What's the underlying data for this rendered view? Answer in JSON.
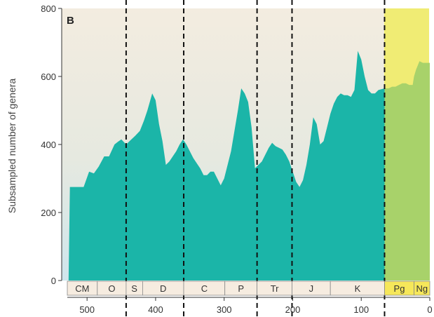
{
  "chart_data": {
    "type": "area",
    "panel_label": "B",
    "title": "",
    "xlabel": "",
    "ylabel": "Subsampled number of genera",
    "x_reversed": true,
    "xlim": [
      537,
      0
    ],
    "ylim": [
      0,
      800
    ],
    "xticks": [
      "500",
      "400",
      "300",
      "200",
      "100",
      "0"
    ],
    "xtick_values": [
      500,
      400,
      300,
      200,
      100,
      0
    ],
    "yticks": [
      "0",
      "200",
      "400",
      "600",
      "800"
    ],
    "ytick_values": [
      0,
      200,
      400,
      600,
      800
    ],
    "grid": false,
    "series": [
      {
        "x": [
          527,
          525,
          520,
          510,
          505,
          497,
          490,
          483,
          475,
          468,
          460,
          455,
          450,
          443,
          437,
          430,
          423,
          417,
          412,
          405,
          400,
          395,
          390,
          385,
          380,
          375,
          370,
          365,
          360,
          355,
          350,
          345,
          340,
          335,
          330,
          325,
          320,
          315,
          310,
          305,
          300,
          295,
          290,
          285,
          280,
          275,
          270,
          265,
          260,
          255,
          250,
          245,
          240,
          235,
          230,
          225,
          220,
          215,
          210,
          205,
          200,
          195,
          190,
          185,
          180,
          175,
          170,
          165,
          160,
          155,
          150,
          145,
          140,
          135,
          130,
          125,
          120,
          115,
          110,
          105,
          100,
          95,
          90,
          85,
          80,
          75,
          66
        ],
        "values": [
          0,
          275,
          275,
          275,
          275,
          320,
          315,
          335,
          365,
          365,
          400,
          408,
          415,
          400,
          412,
          425,
          440,
          470,
          500,
          550,
          530,
          460,
          410,
          340,
          350,
          365,
          380,
          400,
          415,
          400,
          380,
          360,
          345,
          330,
          310,
          310,
          320,
          320,
          300,
          280,
          300,
          340,
          380,
          440,
          500,
          565,
          550,
          525,
          450,
          330,
          340,
          350,
          370,
          390,
          405,
          395,
          390,
          385,
          370,
          350,
          320,
          290,
          275,
          295,
          340,
          400,
          480,
          460,
          400,
          410,
          450,
          490,
          520,
          540,
          550,
          545,
          545,
          540,
          560,
          675,
          650,
          600,
          560,
          550,
          550,
          560,
          565
        ]
      },
      {
        "x": [
          66,
          60,
          55,
          50,
          45,
          40,
          35,
          30,
          25,
          23,
          20,
          15,
          10,
          5,
          0
        ],
        "values": [
          565,
          565,
          570,
          570,
          575,
          580,
          580,
          575,
          575,
          600,
          620,
          645,
          640,
          640,
          640
        ]
      }
    ],
    "boundaries_dashed": [
      443,
      359,
      252,
      201,
      66
    ],
    "periods": [
      {
        "label": "CM",
        "start": 541,
        "end": 485
      },
      {
        "label": "O",
        "start": 485,
        "end": 443
      },
      {
        "label": "S",
        "start": 443,
        "end": 419
      },
      {
        "label": "D",
        "start": 419,
        "end": 359
      },
      {
        "label": "C",
        "start": 359,
        "end": 299
      },
      {
        "label": "P",
        "start": 299,
        "end": 252
      },
      {
        "label": "Tr",
        "start": 252,
        "end": 201
      },
      {
        "label": "J",
        "start": 201,
        "end": 145
      },
      {
        "label": "K",
        "start": 145,
        "end": 66
      },
      {
        "label": "Pg",
        "start": 66,
        "end": 23
      },
      {
        "label": "Ng",
        "start": 23,
        "end": 0
      }
    ],
    "colors": {
      "mesozoic_paleozoic_fill": "#1bb5a8",
      "cenozoic_fill": "#a8d26a",
      "background_top": "#f3ece0",
      "background_bottom": "#d5e8ea",
      "cenozoic_background": "#f0ec74",
      "period_box": "#f6ece0",
      "cenozoic_period_box": "#f6e75a",
      "axis": "#333333",
      "dash": "#111111"
    }
  }
}
